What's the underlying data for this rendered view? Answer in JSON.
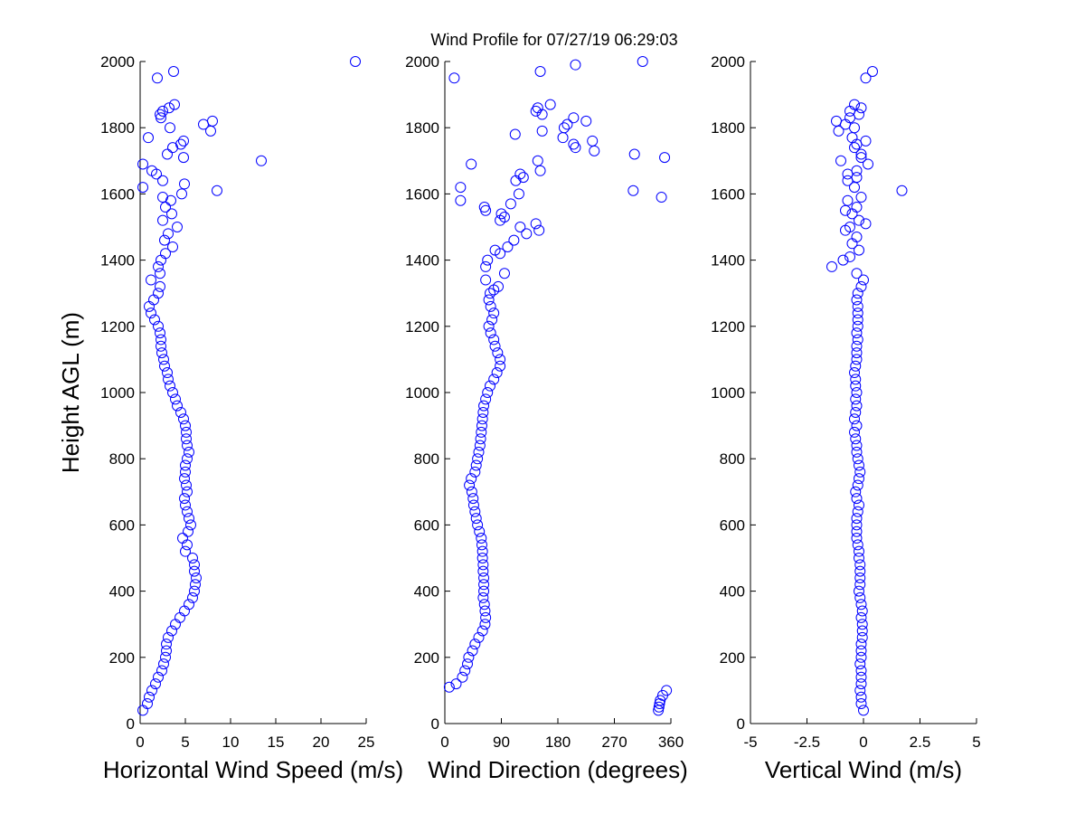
{
  "title": "Wind Profile for  07/27/19 06:29:03",
  "chart_data": [
    {
      "type": "scatter",
      "xlabel": "Horizontal Wind Speed (m/s)",
      "ylabel": "Height AGL (m)",
      "color": "#0000ff",
      "xlim": [
        0,
        25
      ],
      "xticks": [
        0,
        5,
        10,
        15,
        20,
        25
      ],
      "ylim": [
        0,
        2000
      ],
      "yticks": [
        0,
        200,
        400,
        600,
        800,
        1000,
        1200,
        1400,
        1600,
        1800,
        2000
      ],
      "y": [
        40,
        60,
        80,
        100,
        120,
        140,
        160,
        180,
        200,
        220,
        240,
        260,
        280,
        300,
        320,
        340,
        360,
        380,
        400,
        420,
        440,
        460,
        480,
        500,
        520,
        540,
        560,
        580,
        600,
        620,
        640,
        660,
        680,
        700,
        720,
        740,
        760,
        780,
        800,
        820,
        840,
        860,
        880,
        900,
        920,
        940,
        960,
        980,
        1000,
        1020,
        1040,
        1060,
        1080,
        1100,
        1120,
        1140,
        1160,
        1180,
        1200,
        1220,
        1240,
        1260,
        1280,
        1300,
        1320,
        1340,
        1360,
        1380,
        1400,
        1420,
        1440,
        1460,
        1480,
        1500,
        1520,
        1540,
        1560,
        1580,
        1590,
        1600,
        1610,
        1620,
        1630,
        1640,
        1660,
        1670,
        1690,
        1700,
        1710,
        1720,
        1740,
        1750,
        1760,
        1770,
        1790,
        1800,
        1810,
        1820,
        1830,
        1840,
        1850,
        1860,
        1870,
        1950,
        1970,
        2000
      ],
      "x": [
        0.3,
        0.8,
        1.0,
        1.3,
        1.7,
        2.0,
        2.4,
        2.6,
        2.8,
        2.9,
        2.9,
        3.1,
        3.5,
        3.9,
        4.4,
        4.9,
        5.4,
        5.8,
        6.0,
        6.1,
        6.2,
        6.0,
        6.0,
        5.8,
        5.0,
        5.2,
        4.7,
        5.3,
        5.6,
        5.4,
        5.2,
        5.0,
        4.9,
        5.2,
        5.1,
        4.9,
        5.0,
        5.0,
        5.2,
        5.4,
        5.2,
        5.1,
        5.1,
        5.0,
        4.8,
        4.5,
        4.1,
        3.9,
        3.6,
        3.3,
        3.1,
        3.0,
        2.7,
        2.6,
        2.4,
        2.3,
        2.3,
        2.2,
        2.0,
        1.6,
        1.2,
        1.0,
        1.5,
        2.0,
        2.2,
        1.2,
        2.2,
        2.0,
        2.3,
        2.8,
        3.6,
        2.7,
        3.1,
        4.1,
        2.5,
        3.5,
        2.8,
        3.4,
        2.5,
        4.6,
        8.5,
        0.3,
        4.9,
        2.5,
        1.8,
        1.3,
        0.3,
        13.4,
        4.8,
        3.0,
        3.6,
        4.5,
        4.8,
        0.9,
        7.8,
        3.3,
        7.0,
        8.0,
        2.3,
        2.2,
        2.5,
        3.2,
        3.8,
        1.9,
        3.7,
        23.8
      ]
    },
    {
      "type": "scatter",
      "xlabel": "Wind Direction (degrees)",
      "color": "#0000ff",
      "xlim": [
        0,
        360
      ],
      "xticks": [
        0,
        90,
        180,
        270,
        360
      ],
      "ylim": [
        0,
        2000
      ],
      "yticks": [
        0,
        200,
        400,
        600,
        800,
        1000,
        1200,
        1400,
        1600,
        1800,
        2000
      ],
      "y": [
        40,
        50,
        60,
        70,
        85,
        100,
        110,
        120,
        140,
        160,
        180,
        200,
        220,
        240,
        260,
        280,
        300,
        320,
        340,
        360,
        380,
        400,
        420,
        440,
        460,
        480,
        500,
        520,
        540,
        560,
        580,
        600,
        620,
        640,
        660,
        680,
        700,
        720,
        740,
        760,
        780,
        800,
        820,
        840,
        860,
        880,
        900,
        920,
        940,
        960,
        980,
        1000,
        1020,
        1040,
        1060,
        1080,
        1100,
        1120,
        1140,
        1160,
        1180,
        1200,
        1220,
        1240,
        1260,
        1280,
        1300,
        1310,
        1320,
        1340,
        1360,
        1380,
        1400,
        1420,
        1430,
        1440,
        1460,
        1480,
        1490,
        1500,
        1510,
        1520,
        1530,
        1540,
        1550,
        1560,
        1570,
        1580,
        1590,
        1600,
        1610,
        1620,
        1640,
        1650,
        1660,
        1670,
        1690,
        1700,
        1710,
        1720,
        1730,
        1740,
        1750,
        1760,
        1770,
        1780,
        1790,
        1800,
        1810,
        1820,
        1830,
        1840,
        1850,
        1860,
        1870,
        1950,
        1970,
        1990,
        2000
      ],
      "x": [
        340,
        341,
        342,
        343,
        347,
        353,
        7,
        18,
        28,
        32,
        36,
        38,
        44,
        48,
        54,
        60,
        64,
        65,
        64,
        63,
        61,
        62,
        62,
        62,
        61,
        61,
        60,
        60,
        59,
        58,
        55,
        52,
        50,
        48,
        46,
        45,
        43,
        39,
        42,
        48,
        50,
        52,
        54,
        56,
        57,
        58,
        59,
        60,
        61,
        62,
        65,
        68,
        72,
        78,
        83,
        88,
        88,
        84,
        80,
        78,
        73,
        70,
        75,
        78,
        73,
        70,
        72,
        78,
        85,
        65,
        95,
        65,
        68,
        88,
        80,
        100,
        110,
        130,
        150,
        120,
        145,
        88,
        95,
        90,
        65,
        63,
        105,
        25,
        345,
        118,
        300,
        25,
        113,
        125,
        120,
        152,
        42,
        148,
        350,
        302,
        238,
        208,
        205,
        235,
        188,
        112,
        155,
        190,
        195,
        225,
        205,
        155,
        145,
        148,
        168,
        15,
        152,
        208,
        315
      ]
    },
    {
      "type": "scatter",
      "xlabel": "Vertical Wind (m/s)",
      "color": "#0000ff",
      "xlim": [
        -5,
        5
      ],
      "xticks": [
        -5,
        -2.5,
        0,
        2.5,
        5
      ],
      "ylim": [
        0,
        2000
      ],
      "yticks": [
        0,
        200,
        400,
        600,
        800,
        1000,
        1200,
        1400,
        1600,
        1800,
        2000
      ],
      "y": [
        40,
        60,
        80,
        100,
        120,
        140,
        160,
        180,
        200,
        220,
        240,
        260,
        280,
        300,
        320,
        340,
        360,
        380,
        400,
        420,
        440,
        460,
        480,
        500,
        520,
        540,
        560,
        580,
        600,
        620,
        640,
        660,
        680,
        700,
        720,
        740,
        760,
        780,
        800,
        820,
        840,
        860,
        880,
        900,
        920,
        940,
        960,
        980,
        1000,
        1020,
        1040,
        1060,
        1080,
        1100,
        1120,
        1140,
        1160,
        1180,
        1200,
        1220,
        1240,
        1260,
        1280,
        1300,
        1320,
        1340,
        1360,
        1380,
        1400,
        1410,
        1430,
        1450,
        1470,
        1490,
        1500,
        1510,
        1520,
        1540,
        1550,
        1560,
        1580,
        1590,
        1610,
        1620,
        1640,
        1650,
        1660,
        1670,
        1690,
        1700,
        1710,
        1720,
        1740,
        1750,
        1760,
        1770,
        1790,
        1800,
        1810,
        1820,
        1830,
        1840,
        1850,
        1860,
        1870,
        1950,
        1970
      ],
      "x": [
        0,
        -0.1,
        -0.1,
        -0.15,
        -0.1,
        -0.1,
        -0.1,
        -0.15,
        -0.1,
        -0.1,
        -0.1,
        -0.05,
        -0.05,
        -0.05,
        -0.1,
        -0.05,
        -0.1,
        -0.15,
        -0.2,
        -0.15,
        -0.15,
        -0.15,
        -0.15,
        -0.2,
        -0.2,
        -0.25,
        -0.3,
        -0.3,
        -0.3,
        -0.3,
        -0.25,
        -0.2,
        -0.3,
        -0.35,
        -0.25,
        -0.2,
        -0.15,
        -0.2,
        -0.25,
        -0.3,
        -0.3,
        -0.35,
        -0.4,
        -0.3,
        -0.4,
        -0.35,
        -0.3,
        -0.35,
        -0.3,
        -0.35,
        -0.35,
        -0.4,
        -0.35,
        -0.3,
        -0.3,
        -0.3,
        -0.25,
        -0.3,
        -0.25,
        -0.25,
        -0.25,
        -0.25,
        -0.3,
        -0.25,
        -0.1,
        0.0,
        -0.3,
        -1.4,
        -0.9,
        -0.6,
        -0.2,
        -0.5,
        -0.3,
        -0.8,
        -0.6,
        0.1,
        -0.2,
        -0.5,
        -0.8,
        -0.3,
        -0.7,
        -0.1,
        1.7,
        -0.4,
        -0.7,
        -0.3,
        -0.7,
        -0.3,
        0.2,
        -1.0,
        -0.1,
        -0.1,
        -0.4,
        -0.3,
        0.1,
        -0.5,
        -1.1,
        -0.4,
        -0.8,
        -1.2,
        -0.6,
        -0.2,
        -0.6,
        -0.1,
        -0.4,
        0.1,
        0.4
      ]
    }
  ]
}
